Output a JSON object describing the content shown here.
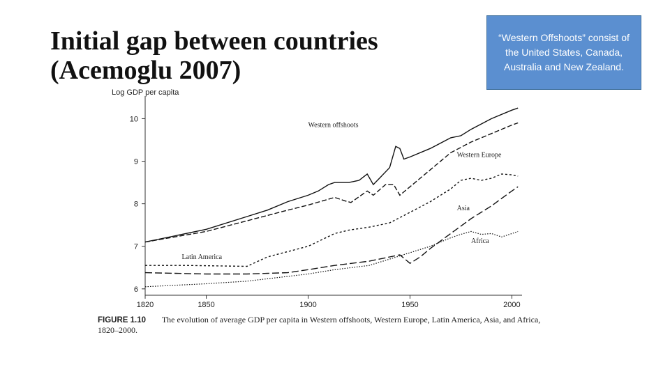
{
  "slide": {
    "title_line1": "Initial gap between countries",
    "title_line2": "(Acemoglu 2007)"
  },
  "callout": {
    "text": "“Western Offshoots” consist of the United States, Canada, Australia and New Zealand.",
    "fill_color": "#5b8fd0"
  },
  "figure": {
    "caption_label": "FIGURE 1.10",
    "caption_text": "The evolution of average GDP per capita in Western offshoots, Western Europe, Latin America, Asia, and Africa, 1820–2000."
  },
  "chart_data": {
    "type": "line",
    "ylabel": "Log GDP per capita",
    "xlabel": "",
    "xlim": [
      1820,
      2005
    ],
    "ylim": [
      5.85,
      10.4
    ],
    "x_ticks": [
      1820,
      1850,
      1900,
      1950,
      2000
    ],
    "y_ticks": [
      6,
      7,
      8,
      9,
      10
    ],
    "grid": false,
    "series": [
      {
        "name": "Western offshoots",
        "style": "solid",
        "points": [
          [
            1820,
            7.1
          ],
          [
            1830,
            7.2
          ],
          [
            1850,
            7.4
          ],
          [
            1870,
            7.7
          ],
          [
            1880,
            7.85
          ],
          [
            1890,
            8.05
          ],
          [
            1900,
            8.2
          ],
          [
            1905,
            8.3
          ],
          [
            1910,
            8.45
          ],
          [
            1913,
            8.5
          ],
          [
            1920,
            8.5
          ],
          [
            1925,
            8.55
          ],
          [
            1929,
            8.7
          ],
          [
            1932,
            8.45
          ],
          [
            1935,
            8.6
          ],
          [
            1940,
            8.85
          ],
          [
            1943,
            9.35
          ],
          [
            1945,
            9.3
          ],
          [
            1947,
            9.05
          ],
          [
            1950,
            9.1
          ],
          [
            1960,
            9.3
          ],
          [
            1970,
            9.55
          ],
          [
            1975,
            9.6
          ],
          [
            1980,
            9.75
          ],
          [
            1990,
            10.0
          ],
          [
            2000,
            10.2
          ],
          [
            2003,
            10.25
          ]
        ]
      },
      {
        "name": "Western Europe",
        "style": "dashed",
        "points": [
          [
            1820,
            7.1
          ],
          [
            1850,
            7.35
          ],
          [
            1870,
            7.6
          ],
          [
            1890,
            7.85
          ],
          [
            1900,
            7.97
          ],
          [
            1913,
            8.15
          ],
          [
            1918,
            8.07
          ],
          [
            1921,
            8.03
          ],
          [
            1929,
            8.3
          ],
          [
            1932,
            8.2
          ],
          [
            1938,
            8.45
          ],
          [
            1942,
            8.45
          ],
          [
            1945,
            8.2
          ],
          [
            1950,
            8.4
          ],
          [
            1960,
            8.8
          ],
          [
            1970,
            9.2
          ],
          [
            1980,
            9.45
          ],
          [
            1990,
            9.65
          ],
          [
            2000,
            9.85
          ],
          [
            2003,
            9.9
          ]
        ]
      },
      {
        "name": "Asia",
        "style": "dotted-dashed",
        "points": [
          [
            1820,
            6.55
          ],
          [
            1840,
            6.55
          ],
          [
            1870,
            6.53
          ],
          [
            1880,
            6.75
          ],
          [
            1900,
            7.0
          ],
          [
            1913,
            7.3
          ],
          [
            1920,
            7.38
          ],
          [
            1930,
            7.45
          ],
          [
            1940,
            7.55
          ],
          [
            1950,
            7.8
          ],
          [
            1960,
            8.05
          ],
          [
            1970,
            8.35
          ],
          [
            1975,
            8.55
          ],
          [
            1980,
            8.6
          ],
          [
            1985,
            8.55
          ],
          [
            1990,
            8.6
          ],
          [
            1995,
            8.7
          ],
          [
            2000,
            8.68
          ],
          [
            2003,
            8.65
          ]
        ]
      },
      {
        "name": "Latin America",
        "style": "long-dashed",
        "points": [
          [
            1820,
            6.38
          ],
          [
            1850,
            6.35
          ],
          [
            1870,
            6.35
          ],
          [
            1890,
            6.38
          ],
          [
            1900,
            6.45
          ],
          [
            1913,
            6.55
          ],
          [
            1930,
            6.65
          ],
          [
            1940,
            6.75
          ],
          [
            1945,
            6.8
          ],
          [
            1950,
            6.6
          ],
          [
            1955,
            6.75
          ],
          [
            1960,
            6.95
          ],
          [
            1970,
            7.3
          ],
          [
            1980,
            7.65
          ],
          [
            1990,
            7.95
          ],
          [
            2000,
            8.3
          ],
          [
            2003,
            8.4
          ]
        ]
      },
      {
        "name": "Africa",
        "style": "dotted",
        "points": [
          [
            1820,
            6.05
          ],
          [
            1850,
            6.12
          ],
          [
            1870,
            6.18
          ],
          [
            1900,
            6.35
          ],
          [
            1913,
            6.45
          ],
          [
            1930,
            6.55
          ],
          [
            1940,
            6.7
          ],
          [
            1950,
            6.85
          ],
          [
            1960,
            7.0
          ],
          [
            1970,
            7.2
          ],
          [
            1975,
            7.28
          ],
          [
            1980,
            7.35
          ],
          [
            1985,
            7.28
          ],
          [
            1990,
            7.3
          ],
          [
            1995,
            7.22
          ],
          [
            2000,
            7.3
          ],
          [
            2003,
            7.35
          ]
        ]
      }
    ],
    "labels": [
      {
        "text": "Western offshoots",
        "x": 1900,
        "y": 9.8
      },
      {
        "text": "Western Europe",
        "x": 1973,
        "y": 9.1
      },
      {
        "text": "Asia",
        "x": 1973,
        "y": 7.85
      },
      {
        "text": "Latin America",
        "x": 1838,
        "y": 6.7
      },
      {
        "text": "Africa",
        "x": 1980,
        "y": 7.08
      }
    ]
  }
}
